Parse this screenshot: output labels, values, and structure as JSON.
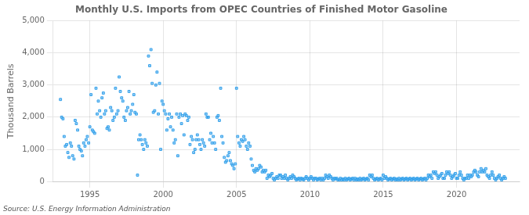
{
  "chart_data": {
    "type": "scatter",
    "title": "Monthly U.S. Imports from OPEC Countries of Finished Motor Gasoline",
    "ylabel": "Thousand Barrels",
    "annotations": [
      "Source: U.S. Energy Information Administration"
    ],
    "marker": "square",
    "grid": true,
    "xlim": [
      1992.5,
      2024.3
    ],
    "xticks": [
      1995,
      2000,
      2005,
      2010,
      2015,
      2020
    ],
    "ylim": [
      0,
      5000
    ],
    "yticks": [
      0,
      {
        "value": 1000,
        "label": "1,000"
      },
      {
        "value": 2000,
        "label": "2,000"
      },
      {
        "value": 3000,
        "label": "3,000"
      },
      {
        "value": 4000,
        "label": "4,000"
      },
      {
        "value": 5000,
        "label": "5,000"
      }
    ],
    "x": [
      1993.0,
      1993.08,
      1993.17,
      1993.25,
      1993.33,
      1993.42,
      1993.5,
      1993.58,
      1993.67,
      1993.75,
      1993.83,
      1993.92,
      1994.0,
      1994.08,
      1994.17,
      1994.25,
      1994.33,
      1994.42,
      1994.5,
      1994.58,
      1994.67,
      1994.75,
      1994.83,
      1994.92,
      1995.0,
      1995.08,
      1995.17,
      1995.25,
      1995.33,
      1995.42,
      1995.5,
      1995.58,
      1995.67,
      1995.75,
      1995.83,
      1995.92,
      1996.0,
      1996.08,
      1996.17,
      1996.25,
      1996.33,
      1996.42,
      1996.5,
      1996.58,
      1996.67,
      1996.75,
      1996.83,
      1996.92,
      1997.0,
      1997.08,
      1997.17,
      1997.25,
      1997.33,
      1997.42,
      1997.5,
      1997.58,
      1997.67,
      1997.75,
      1997.83,
      1997.92,
      1998.0,
      1998.08,
      1998.17,
      1998.25,
      1998.33,
      1998.42,
      1998.5,
      1998.58,
      1998.67,
      1998.75,
      1998.83,
      1998.92,
      1999.0,
      1999.08,
      1999.17,
      1999.25,
      1999.33,
      1999.42,
      1999.5,
      1999.58,
      1999.67,
      1999.75,
      1999.83,
      1999.92,
      2000.0,
      2000.08,
      2000.17,
      2000.25,
      2000.33,
      2000.42,
      2000.5,
      2000.58,
      2000.67,
      2000.75,
      2000.83,
      2000.92,
      2001.0,
      2001.08,
      2001.17,
      2001.25,
      2001.33,
      2001.42,
      2001.5,
      2001.58,
      2001.67,
      2001.75,
      2001.83,
      2001.92,
      2002.0,
      2002.08,
      2002.17,
      2002.25,
      2002.33,
      2002.42,
      2002.5,
      2002.58,
      2002.67,
      2002.75,
      2002.83,
      2002.92,
      2003.0,
      2003.08,
      2003.17,
      2003.25,
      2003.33,
      2003.42,
      2003.5,
      2003.58,
      2003.67,
      2003.75,
      2003.83,
      2003.92,
      2004.0,
      2004.08,
      2004.17,
      2004.25,
      2004.33,
      2004.42,
      2004.5,
      2004.58,
      2004.67,
      2004.75,
      2004.83,
      2004.92,
      2005.0,
      2005.08,
      2005.17,
      2005.25,
      2005.33,
      2005.42,
      2005.5,
      2005.58,
      2005.67,
      2005.75,
      2005.83,
      2005.92,
      2006.0,
      2006.08,
      2006.17,
      2006.25,
      2006.33,
      2006.42,
      2006.5,
      2006.58,
      2006.67,
      2006.75,
      2006.83,
      2006.92,
      2007.0,
      2007.08,
      2007.17,
      2007.25,
      2007.33,
      2007.42,
      2007.5,
      2007.58,
      2007.67,
      2007.75,
      2007.83,
      2007.92,
      2008.0,
      2008.08,
      2008.17,
      2008.25,
      2008.33,
      2008.42,
      2008.5,
      2008.58,
      2008.67,
      2008.75,
      2008.83,
      2008.92,
      2009.0,
      2009.08,
      2009.17,
      2009.25,
      2009.33,
      2009.42,
      2009.5,
      2009.58,
      2009.67,
      2009.75,
      2009.83,
      2009.92,
      2010.0,
      2010.08,
      2010.17,
      2010.25,
      2010.33,
      2010.42,
      2010.5,
      2010.58,
      2010.67,
      2010.75,
      2010.83,
      2010.92,
      2011.0,
      2011.08,
      2011.17,
      2011.25,
      2011.33,
      2011.42,
      2011.5,
      2011.58,
      2011.67,
      2011.75,
      2011.83,
      2011.92,
      2012.0,
      2012.08,
      2012.17,
      2012.25,
      2012.33,
      2012.42,
      2012.5,
      2012.58,
      2012.67,
      2012.75,
      2012.83,
      2012.92,
      2013.0,
      2013.08,
      2013.17,
      2013.25,
      2013.33,
      2013.42,
      2013.5,
      2013.58,
      2013.67,
      2013.75,
      2013.83,
      2013.92,
      2014.0,
      2014.08,
      2014.17,
      2014.25,
      2014.33,
      2014.42,
      2014.5,
      2014.58,
      2014.67,
      2014.75,
      2014.83,
      2014.92,
      2015.0,
      2015.08,
      2015.17,
      2015.25,
      2015.33,
      2015.42,
      2015.5,
      2015.58,
      2015.67,
      2015.75,
      2015.83,
      2015.92,
      2016.0,
      2016.08,
      2016.17,
      2016.25,
      2016.33,
      2016.42,
      2016.5,
      2016.58,
      2016.67,
      2016.75,
      2016.83,
      2016.92,
      2017.0,
      2017.08,
      2017.17,
      2017.25,
      2017.33,
      2017.42,
      2017.5,
      2017.58,
      2017.67,
      2017.75,
      2017.83,
      2017.92,
      2018.0,
      2018.08,
      2018.17,
      2018.25,
      2018.33,
      2018.42,
      2018.5,
      2018.58,
      2018.67,
      2018.75,
      2018.83,
      2018.92,
      2019.0,
      2019.08,
      2019.17,
      2019.25,
      2019.33,
      2019.42,
      2019.5,
      2019.58,
      2019.67,
      2019.75,
      2019.83,
      2019.92,
      2020.0,
      2020.08,
      2020.17,
      2020.25,
      2020.33,
      2020.42,
      2020.5,
      2020.58,
      2020.67,
      2020.75,
      2020.83,
      2020.92,
      2021.0,
      2021.08,
      2021.17,
      2021.25,
      2021.33,
      2021.42,
      2021.5,
      2021.58,
      2021.67,
      2021.75,
      2021.83,
      2021.92,
      2022.0,
      2022.08,
      2022.17,
      2022.25,
      2022.33,
      2022.42,
      2022.5,
      2022.58,
      2022.67,
      2022.75,
      2022.83,
      2022.92,
      2023.0,
      2023.08,
      2023.17,
      2023.25,
      2023.33
    ],
    "values": [
      2550,
      2000,
      1950,
      1400,
      1100,
      1150,
      900,
      750,
      1200,
      1100,
      800,
      700,
      1900,
      1800,
      1600,
      1100,
      1000,
      950,
      800,
      1200,
      1100,
      1300,
      1400,
      1200,
      1700,
      2700,
      1600,
      1550,
      1500,
      2900,
      2100,
      2500,
      2200,
      2000,
      2600,
      2750,
      2100,
      2200,
      1650,
      1700,
      1600,
      2300,
      2200,
      1900,
      2000,
      2900,
      2100,
      2200,
      3250,
      2800,
      2600,
      2500,
      2000,
      1900,
      2200,
      2300,
      2800,
      2100,
      2200,
      2400,
      2700,
      2150,
      2100,
      200,
      1300,
      1450,
      1300,
      1150,
      1000,
      1300,
      1200,
      1100,
      3900,
      3600,
      4100,
      3050,
      2150,
      2200,
      3000,
      3400,
      2100,
      3050,
      1000,
      2500,
      2400,
      2200,
      2100,
      1600,
      1950,
      2100,
      1700,
      2000,
      1600,
      1200,
      1300,
      2100,
      800,
      2000,
      2100,
      1800,
      2050,
      1450,
      2100,
      2050,
      1900,
      2000,
      1150,
      1400,
      1300,
      900,
      1000,
      1300,
      1450,
      1300,
      1150,
      1000,
      1300,
      1200,
      1100,
      2100,
      2000,
      2000,
      1300,
      1500,
      1200,
      1400,
      1200,
      1000,
      2000,
      2050,
      1900,
      2900,
      1400,
      1200,
      750,
      600,
      650,
      800,
      900,
      650,
      550,
      500,
      400,
      550,
      2900,
      1400,
      1200,
      1100,
      1300,
      1250,
      1400,
      1300,
      1100,
      1000,
      1200,
      1100,
      700,
      500,
      350,
      300,
      400,
      350,
      400,
      500,
      450,
      300,
      350,
      300,
      350,
      100,
      200,
      150,
      200,
      250,
      100,
      50,
      100,
      150,
      100,
      200,
      200,
      100,
      150,
      100,
      200,
      100,
      50,
      100,
      150,
      100,
      200,
      150,
      100,
      50,
      80,
      100,
      50,
      100,
      80,
      50,
      100,
      150,
      100,
      50,
      100,
      150,
      100,
      50,
      100,
      100,
      50,
      80,
      100,
      50,
      100,
      50,
      100,
      200,
      150,
      100,
      200,
      150,
      100,
      50,
      100,
      80,
      100,
      50,
      50,
      100,
      50,
      80,
      50,
      100,
      50,
      80,
      100,
      50,
      80,
      100,
      50,
      100,
      50,
      80,
      50,
      100,
      50,
      80,
      100,
      50,
      80,
      100,
      50,
      200,
      150,
      200,
      100,
      50,
      80,
      100,
      50,
      80,
      100,
      50,
      200,
      100,
      150,
      100,
      50,
      80,
      100,
      50,
      80,
      100,
      50,
      80,
      50,
      100,
      50,
      80,
      100,
      50,
      80,
      100,
      50,
      80,
      100,
      50,
      80,
      100,
      50,
      80,
      100,
      50,
      80,
      100,
      50,
      80,
      100,
      50,
      100,
      200,
      150,
      200,
      100,
      300,
      250,
      300,
      200,
      100,
      150,
      200,
      250,
      100,
      100,
      200,
      300,
      250,
      300,
      200,
      100,
      150,
      200,
      250,
      100,
      100,
      200,
      300,
      200,
      100,
      50,
      100,
      100,
      200,
      100,
      200,
      150,
      200,
      300,
      350,
      300,
      200,
      150,
      300,
      400,
      300,
      350,
      300,
      400,
      200,
      150,
      100,
      200,
      300,
      200,
      100,
      50,
      100,
      150,
      200,
      100,
      50,
      100,
      150,
      100
    ]
  }
}
